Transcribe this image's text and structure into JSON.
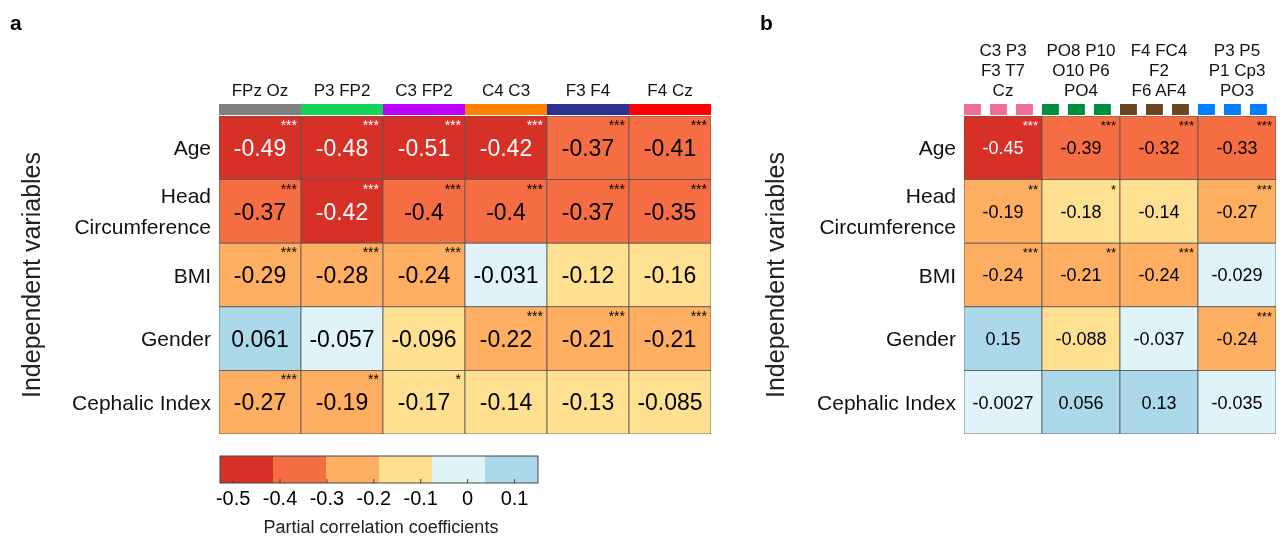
{
  "chart_data": [
    {
      "type": "heatmap",
      "title": "a",
      "ylabel": "Independent variables",
      "clabel": "Partial correlation coefficients",
      "categories": [
        "FPz Oz",
        "P3 FP2",
        "C3 FP2",
        "C4 C3",
        "F3 F4",
        "F4 Cz"
      ],
      "y_categories": [
        "Age",
        "Head\nCircumference",
        "BMI",
        "Gender",
        "Cephalic Index"
      ],
      "cells": [
        [
          -0.49,
          -0.48,
          -0.51,
          -0.42,
          -0.37,
          -0.41
        ],
        [
          -0.37,
          -0.42,
          -0.4,
          -0.4,
          -0.37,
          -0.35
        ],
        [
          -0.29,
          -0.28,
          -0.24,
          -0.031,
          -0.12,
          -0.16
        ],
        [
          0.061,
          -0.057,
          -0.096,
          -0.22,
          -0.21,
          -0.21
        ],
        [
          -0.27,
          -0.19,
          -0.17,
          -0.14,
          -0.13,
          -0.085
        ]
      ],
      "cell_labels": [
        [
          "***\n-0.49",
          "***\n-0.48",
          "***\n-0.51",
          "***\n-0.42",
          "***\n-0.37",
          "***\n-0.41"
        ],
        [
          "***\n-0.37",
          "***\n-0.42",
          "***\n-0.4",
          "***\n-0.4",
          "***\n-0.37",
          "***\n-0.35"
        ],
        [
          "***\n-0.29",
          "***\n-0.28",
          "***\n-0.24",
          "-0.031",
          "-0.12",
          "-0.16"
        ],
        [
          "0.061",
          "-0.057",
          "-0.096",
          "***\n-0.22",
          "***\n-0.21",
          "***\n-0.21"
        ],
        [
          "***\n-0.27",
          "**\n-0.19",
          "*\n-0.17",
          "-0.14",
          "-0.13",
          "-0.085"
        ]
      ],
      "clim": [
        -0.528,
        0.15
      ],
      "cticks": [
        -0.5,
        -0.4,
        -0.3,
        -0.2,
        -0.1,
        0,
        0.1
      ],
      "colors": [
        "#d73027",
        "#f46d43",
        "#fdae61",
        "#fee090",
        "#e0f3f8",
        "#abd9e9"
      ]
    },
    {
      "type": "heatmap",
      "title": "b",
      "ylabel": "Independent variables",
      "categories": [
        "C3 P3\nF3 T7\nCz",
        "PO8 P10\nO10 P6\nPO4",
        "F4 FC4\nF2\nF6 AF4",
        "P3 P5\nP1 Cp3\nPO3"
      ],
      "y_categories": [
        "Age",
        "Head\nCircumference",
        "BMI",
        "Gender",
        "Cephalic Index"
      ],
      "cells": [
        [
          -0.45,
          -0.39,
          -0.32,
          -0.33
        ],
        [
          -0.19,
          -0.18,
          -0.14,
          -0.27
        ],
        [
          -0.24,
          -0.21,
          -0.24,
          -0.029
        ],
        [
          0.15,
          -0.088,
          -0.037,
          -0.24
        ],
        [
          -0.0027,
          0.056,
          0.13,
          -0.035
        ]
      ],
      "cell_labels": [
        [
          "***\n-0.45",
          "***\n-0.39",
          "***\n-0.32",
          "***\n-0.33"
        ],
        [
          "**\n-0.19",
          "*\n-0.18",
          "-0.14",
          "***\n-0.27"
        ],
        [
          "***\n-0.24",
          "**\n-0.21",
          "***\n-0.24",
          "-0.029"
        ],
        [
          "0.15",
          "-0.088",
          "-0.037",
          "***\n-0.24"
        ],
        [
          "-0.0027",
          "0.056",
          "0.13",
          "-0.035"
        ]
      ]
    }
  ]
}
